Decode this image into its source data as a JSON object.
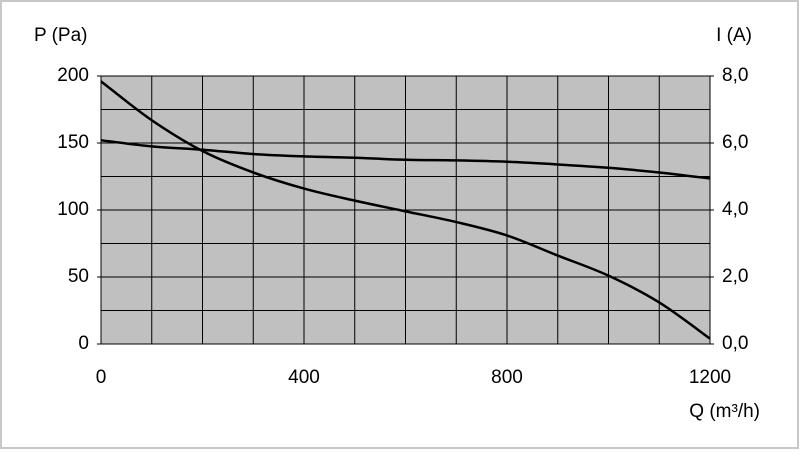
{
  "chart_data": {
    "type": "line",
    "ylabel": "P (Pa)",
    "y2label": "I (A)",
    "xlabel": "Q (m³/h)",
    "x": [
      0,
      100,
      200,
      300,
      400,
      500,
      600,
      700,
      800,
      900,
      1000,
      1100,
      1200
    ],
    "series": [
      {
        "color": "#000000",
        "values": [
          196,
          167,
          144,
          128,
          116,
          107,
          99,
          91,
          81,
          66,
          51,
          31,
          4
        ]
      },
      {
        "color": "#000000",
        "axis": "y2",
        "values": [
          6.08,
          5.9,
          5.8,
          5.67,
          5.6,
          5.56,
          5.5,
          5.48,
          5.44,
          5.36,
          5.26,
          5.12,
          4.94
        ]
      }
    ],
    "xlim": [
      0,
      1200
    ],
    "xticks": [
      0,
      400,
      800,
      1200
    ],
    "x_minor_ticks": [
      100,
      200,
      300,
      500,
      600,
      700,
      900,
      1000,
      1100
    ],
    "ylim": [
      0,
      200
    ],
    "yticks": [
      0,
      50,
      100,
      150,
      200
    ],
    "y_minor_ticks": [
      25,
      75,
      125,
      175
    ],
    "y2lim": [
      0,
      8
    ],
    "y2ticks": [
      {
        "value": 0,
        "label": "0,0"
      },
      {
        "value": 2,
        "label": "2,0"
      },
      {
        "value": 4,
        "label": "4,0"
      },
      {
        "value": 6,
        "label": "6,0"
      },
      {
        "value": 8,
        "label": "8,0"
      }
    ],
    "grid": true,
    "plot_background": "#c0c0c0"
  }
}
